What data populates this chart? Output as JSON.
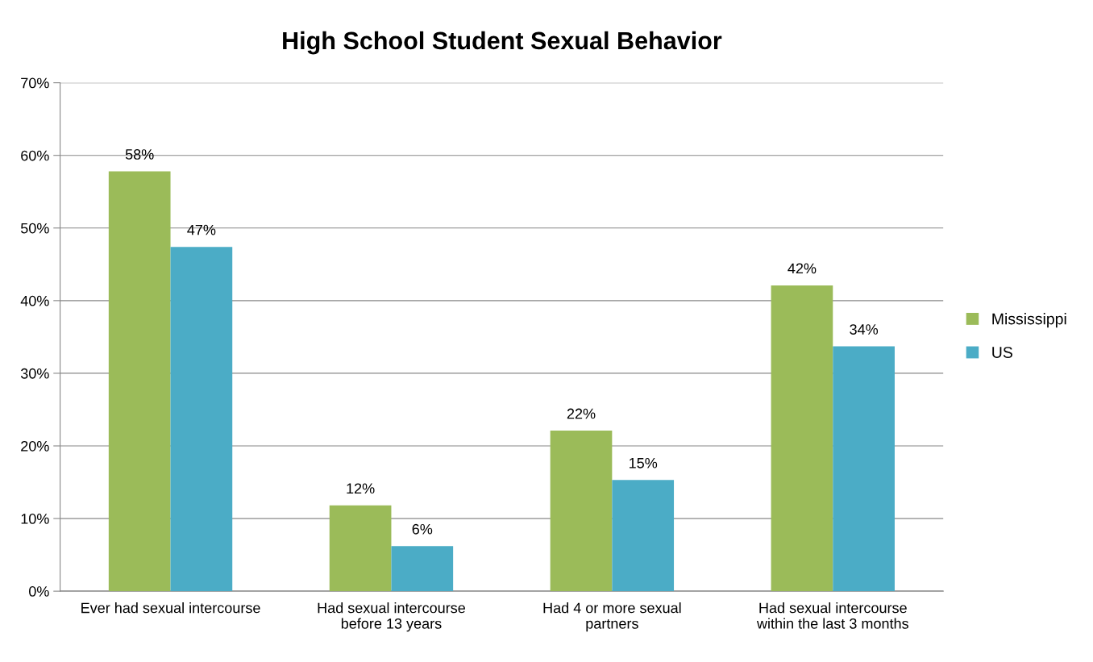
{
  "chart_data": {
    "type": "bar",
    "title": "High School Student Sexual Behavior",
    "categories": [
      "Ever had sexual intercourse",
      "Had sexual intercourse\nbefore 13 years",
      "Had 4 or more sexual\npartners",
      "Had sexual intercourse\nwithin the last 3 months"
    ],
    "series": [
      {
        "name": "Mississippi",
        "color": "#9bbb59",
        "values": [
          57.8,
          11.8,
          22.1,
          42.1
        ],
        "value_labels": [
          "58%",
          "12%",
          "22%",
          "42%"
        ]
      },
      {
        "name": "US",
        "color": "#4bacc6",
        "values": [
          47.4,
          6.2,
          15.3,
          33.7
        ],
        "value_labels": [
          "47%",
          "6%",
          "15%",
          "34%"
        ]
      }
    ],
    "ylim": [
      0,
      70
    ],
    "yticks": [
      {
        "value": 0,
        "label": "0%"
      },
      {
        "value": 10,
        "label": "10%"
      },
      {
        "value": 20,
        "label": "20%"
      },
      {
        "value": 30,
        "label": "30%"
      },
      {
        "value": 40,
        "label": "40%"
      },
      {
        "value": 50,
        "label": "50%"
      },
      {
        "value": 60,
        "label": "60%"
      },
      {
        "value": 70,
        "label": "70%"
      }
    ],
    "grid": "y",
    "legend": "right"
  }
}
